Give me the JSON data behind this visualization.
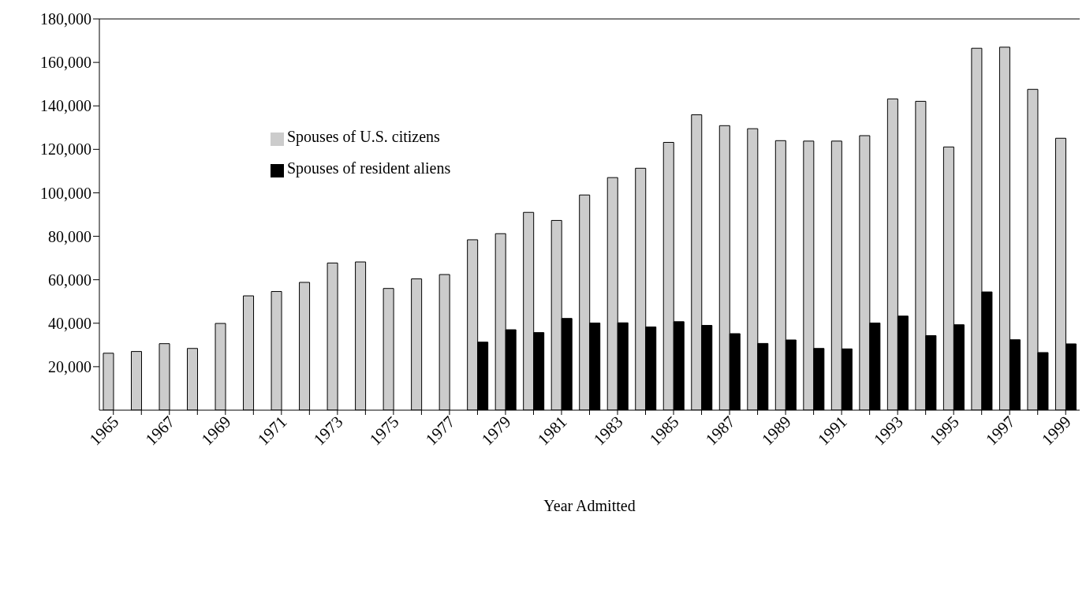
{
  "chart_data": {
    "type": "bar",
    "xlabel": "Year Admitted",
    "categories": [
      "1965",
      null,
      "1967",
      null,
      "1969",
      null,
      "1971",
      null,
      "1973",
      null,
      "1975",
      null,
      "1977",
      null,
      "1979",
      null,
      "1981",
      null,
      "1983",
      null,
      "1985",
      null,
      "1987",
      null,
      "1989",
      null,
      "1991",
      null,
      "1993",
      null,
      "1995",
      null,
      "1997",
      null,
      "1999"
    ],
    "series": [
      {
        "name": "Spouses of U.S. citizens",
        "color": "#cccccc",
        "values": [
          26200,
          27000,
          30600,
          28400,
          39900,
          52600,
          54600,
          58800,
          67700,
          68200,
          56000,
          60400,
          62400,
          78400,
          81200,
          91000,
          87300,
          99000,
          107000,
          111300,
          123200,
          135900,
          130900,
          129500,
          124000,
          123800,
          123800,
          126300,
          143200,
          142100,
          121100,
          166500,
          167000,
          147600,
          125100
        ]
      },
      {
        "name": "Spouses of resident aliens",
        "color": "#000000",
        "values": [
          null,
          null,
          null,
          null,
          null,
          null,
          null,
          null,
          null,
          null,
          null,
          null,
          null,
          31300,
          37000,
          35700,
          42200,
          40100,
          40200,
          38300,
          40700,
          39000,
          35200,
          30700,
          32300,
          28400,
          28200,
          40100,
          43300,
          34300,
          39300,
          54400,
          32400,
          26500,
          30500
        ]
      }
    ],
    "ylim": [
      0,
      180000
    ],
    "yticks": [
      {
        "value": 20000,
        "label": "20,000"
      },
      {
        "value": 40000,
        "label": "40,000"
      },
      {
        "value": 60000,
        "label": "60,000"
      },
      {
        "value": 80000,
        "label": "80,000"
      },
      {
        "value": 100000,
        "label": "100,000"
      },
      {
        "value": 120000,
        "label": "120,000"
      },
      {
        "value": 140000,
        "label": "140,000"
      },
      {
        "value": 160000,
        "label": "160,000"
      },
      {
        "value": 180000,
        "label": "180,000"
      }
    ],
    "legend": "top left"
  }
}
